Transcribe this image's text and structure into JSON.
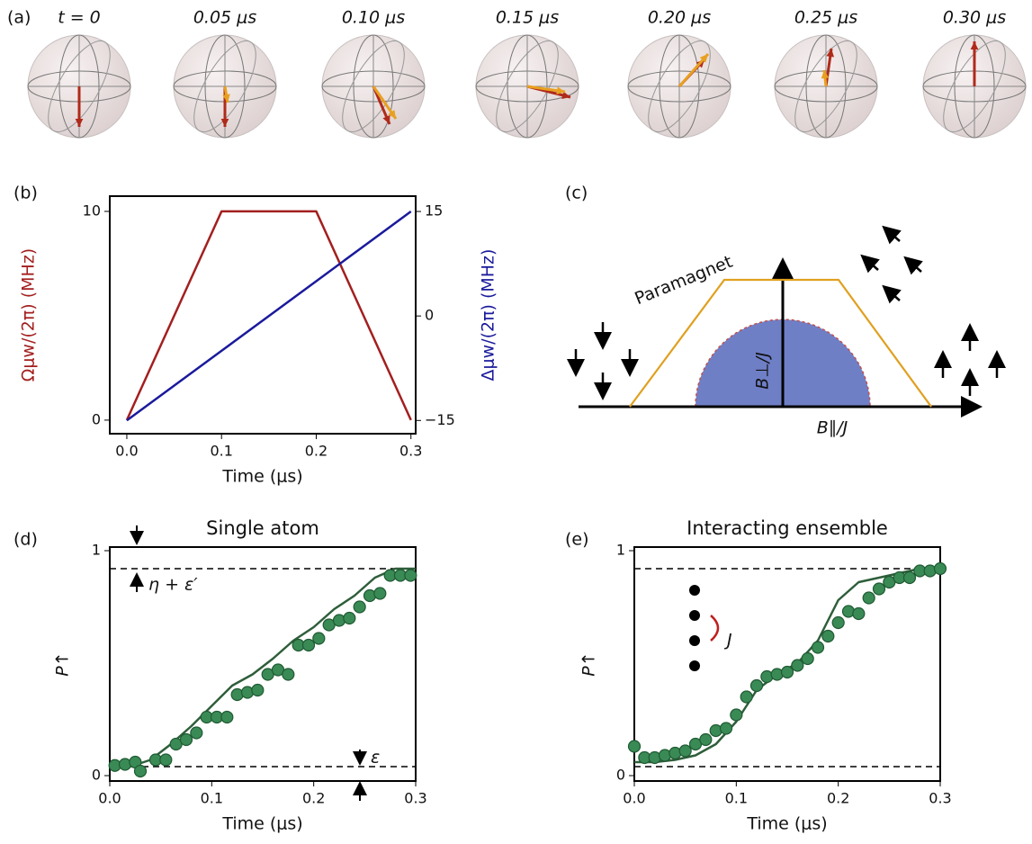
{
  "panels": {
    "a": {
      "label": "(a)",
      "times": [
        "t = 0",
        "0.05 μs",
        "0.10 μs",
        "0.15 μs",
        "0.20 μs",
        "0.25 μs",
        "0.30 μs"
      ]
    },
    "c": {
      "label": "(c)",
      "region": "Paramagnet",
      "ylabel": "B⊥/J",
      "xlabel": "B∥/J"
    }
  },
  "chart_data": [
    {
      "type": "line",
      "panel_label": "(b)",
      "xlabel": "Time (μs)",
      "ylabel": "Ωμw/(2π) (MHz)",
      "y2label": "Δμw/(2π) (MHz)",
      "x": [
        0,
        0.1,
        0.2,
        0.3
      ],
      "series": [
        {
          "name": "Ωμw/(2π)",
          "color": "#a31f1f",
          "style": "line",
          "values": [
            0,
            10,
            10,
            0
          ]
        },
        {
          "name": "Δμw/(2π)",
          "color": "#1a1a9c",
          "style": "line",
          "axis": "y2",
          "values": [
            -15,
            -5,
            5,
            15
          ]
        }
      ],
      "xlim": [
        -0.018,
        0.305
      ],
      "xticks": [
        {
          "value": 0,
          "label": "0.0"
        },
        0.1,
        0.2,
        0.3
      ],
      "ylim": [
        -0.65,
        10.73
      ],
      "yticks": [
        0,
        10
      ],
      "ylabel_color": "#a31f1f",
      "y2lim": [
        -16.9,
        17.2
      ],
      "y2ticks": [
        {
          "value": -15,
          "label": "−15"
        },
        0,
        15
      ],
      "y2label_color": "#1a1a9c"
    },
    {
      "type": "line",
      "panel_label": "(d)",
      "title": "Single atom",
      "xlabel": "Time (μs)",
      "ylabel": "P↑",
      "series": [
        {
          "name": "theory",
          "color": "#2e5e3a",
          "style": "line",
          "x": [
            0,
            0.02,
            0.04,
            0.06,
            0.08,
            0.1,
            0.12,
            0.14,
            0.16,
            0.18,
            0.2,
            0.22,
            0.24,
            0.26,
            0.28,
            0.3
          ],
          "values": [
            0.04,
            0.04,
            0.07,
            0.14,
            0.22,
            0.31,
            0.4,
            0.45,
            0.52,
            0.6,
            0.66,
            0.74,
            0.8,
            0.88,
            0.92,
            0.92
          ]
        },
        {
          "name": "data",
          "color": "#3a8a55",
          "style": "markers",
          "x": [
            0.005,
            0.015,
            0.025,
            0.03,
            0.045,
            0.055,
            0.065,
            0.075,
            0.085,
            0.095,
            0.105,
            0.115,
            0.125,
            0.135,
            0.145,
            0.155,
            0.165,
            0.175,
            0.185,
            0.195,
            0.205,
            0.215,
            0.225,
            0.235,
            0.245,
            0.255,
            0.265,
            0.275,
            0.285,
            0.295
          ],
          "values": [
            0.045,
            0.05,
            0.06,
            0.02,
            0.07,
            0.07,
            0.14,
            0.16,
            0.19,
            0.26,
            0.26,
            0.26,
            0.36,
            0.37,
            0.38,
            0.45,
            0.47,
            0.45,
            0.58,
            0.58,
            0.61,
            0.67,
            0.69,
            0.7,
            0.75,
            0.8,
            0.81,
            0.89,
            0.89,
            0.89
          ]
        }
      ],
      "hlines": [
        0.92,
        0.04
      ],
      "annotations": [
        "η + ε′",
        "ε"
      ],
      "xlim": [
        0,
        0.3
      ],
      "xticks": [
        {
          "value": 0,
          "label": "0.0"
        },
        0.1,
        0.2,
        0.3
      ],
      "ylim": [
        -0.024,
        1.016
      ],
      "yticks": [
        0,
        1
      ]
    },
    {
      "type": "line",
      "panel_label": "(e)",
      "title": "Interacting ensemble",
      "xlabel": "Time (μs)",
      "ylabel": "P↑",
      "series": [
        {
          "name": "theory",
          "color": "#2e5e3a",
          "style": "line",
          "x": [
            0,
            0.02,
            0.04,
            0.06,
            0.08,
            0.1,
            0.12,
            0.14,
            0.16,
            0.18,
            0.2,
            0.22,
            0.24,
            0.26,
            0.28,
            0.3
          ],
          "values": [
            0.06,
            0.06,
            0.07,
            0.09,
            0.14,
            0.24,
            0.38,
            0.45,
            0.5,
            0.6,
            0.78,
            0.86,
            0.88,
            0.9,
            0.92,
            0.92
          ]
        },
        {
          "name": "data",
          "color": "#3a8a55",
          "style": "markers",
          "x": [
            0,
            0.01,
            0.02,
            0.03,
            0.04,
            0.05,
            0.06,
            0.07,
            0.08,
            0.09,
            0.1,
            0.11,
            0.12,
            0.13,
            0.14,
            0.15,
            0.16,
            0.17,
            0.18,
            0.19,
            0.2,
            0.21,
            0.22,
            0.23,
            0.24,
            0.25,
            0.26,
            0.27,
            0.28,
            0.29,
            0.3
          ],
          "values": [
            0.13,
            0.08,
            0.08,
            0.09,
            0.1,
            0.11,
            0.14,
            0.16,
            0.2,
            0.21,
            0.27,
            0.35,
            0.4,
            0.44,
            0.45,
            0.46,
            0.49,
            0.52,
            0.57,
            0.62,
            0.68,
            0.73,
            0.72,
            0.79,
            0.83,
            0.86,
            0.88,
            0.88,
            0.91,
            0.91,
            0.92
          ]
        }
      ],
      "hlines": [
        0.92,
        0.04
      ],
      "annotations": [
        "J"
      ],
      "xlim": [
        0,
        0.3
      ],
      "xticks": [
        {
          "value": 0,
          "label": "0.0"
        },
        0.1,
        0.2,
        0.3
      ],
      "ylim": [
        -0.024,
        1.016
      ],
      "yticks": [
        0,
        1
      ]
    }
  ]
}
